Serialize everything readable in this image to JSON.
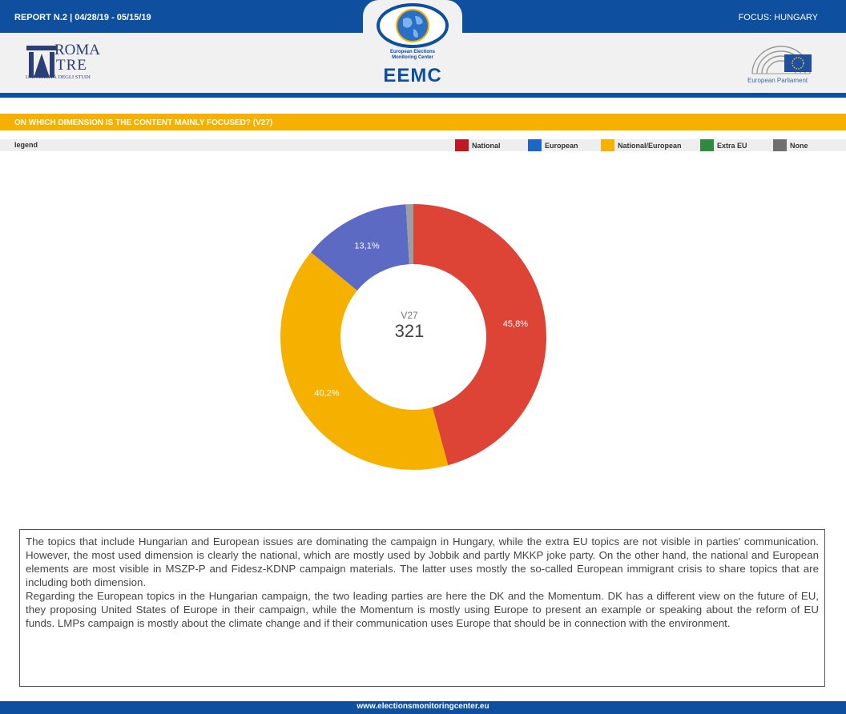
{
  "header": {
    "report": "REPORT N.2 | 04/28/19 - 05/15/19",
    "focus": "FOCUS: HUNGARY",
    "roma_line1": "ROMA",
    "roma_line2": "TRE",
    "roma_line3": "UNIVERSITÀ DEGLI STUDI",
    "eemc_sub1": "European Elections",
    "eemc_sub2": "Monitoring Center",
    "eemc_name": "EEMC",
    "ep_name": "European Parliament"
  },
  "question": "ON WHICH DIMENSION IS THE CONTENT MAINLY FOCUSED? (V27)",
  "legend": {
    "title": "legend",
    "items": [
      {
        "label": "National",
        "color": "#c0181f"
      },
      {
        "label": "European",
        "color": "#1c66c6"
      },
      {
        "label": "National/European",
        "color": "#f6b100"
      },
      {
        "label": "Extra EU",
        "color": "#2d8a3e"
      },
      {
        "label": "None",
        "color": "#6f6f6f"
      }
    ]
  },
  "chart_data": {
    "type": "pie",
    "variant": "donut",
    "center_label": "V27",
    "center_value": "321",
    "slices": [
      {
        "label": "National",
        "value": 45.8,
        "display": "45,8%",
        "color": "#dd4436"
      },
      {
        "label": "National/European",
        "value": 40.2,
        "display": "40,2%",
        "color": "#f6b100"
      },
      {
        "label": "European",
        "value": 13.1,
        "display": "13,1%",
        "color": "#5c6ac4"
      },
      {
        "label": "None",
        "value": 0.9,
        "display": "",
        "color": "#9e9e9e"
      }
    ]
  },
  "analysis": {
    "p1": "The topics that include Hungarian and European issues are dominating the campaign in Hungary, while the extra EU topics are not visible in parties' communication. However, the most used dimension is clearly the national, which are mostly used by Jobbik and partly MKKP joke party. On the other hand, the national and European elements are most visible in MSZP-P and Fidesz-KDNP campaign materials. The latter uses mostly the so-called European immigrant crisis to share topics that are including both dimension.",
    "p2": "Regarding the European topics in the Hungarian campaign, the two leading parties are here the DK and the Momentum. DK has a different view on the future of EU, they proposing United States of Europe in their campaign, while the Momentum is mostly using Europe to present an example or speaking about the reform of EU funds. LMPs campaign is mostly about the climate change and if their communication uses Europe that should be in connection with the environment."
  },
  "footer": {
    "url": "www.electionsmonitoringcenter.eu"
  }
}
